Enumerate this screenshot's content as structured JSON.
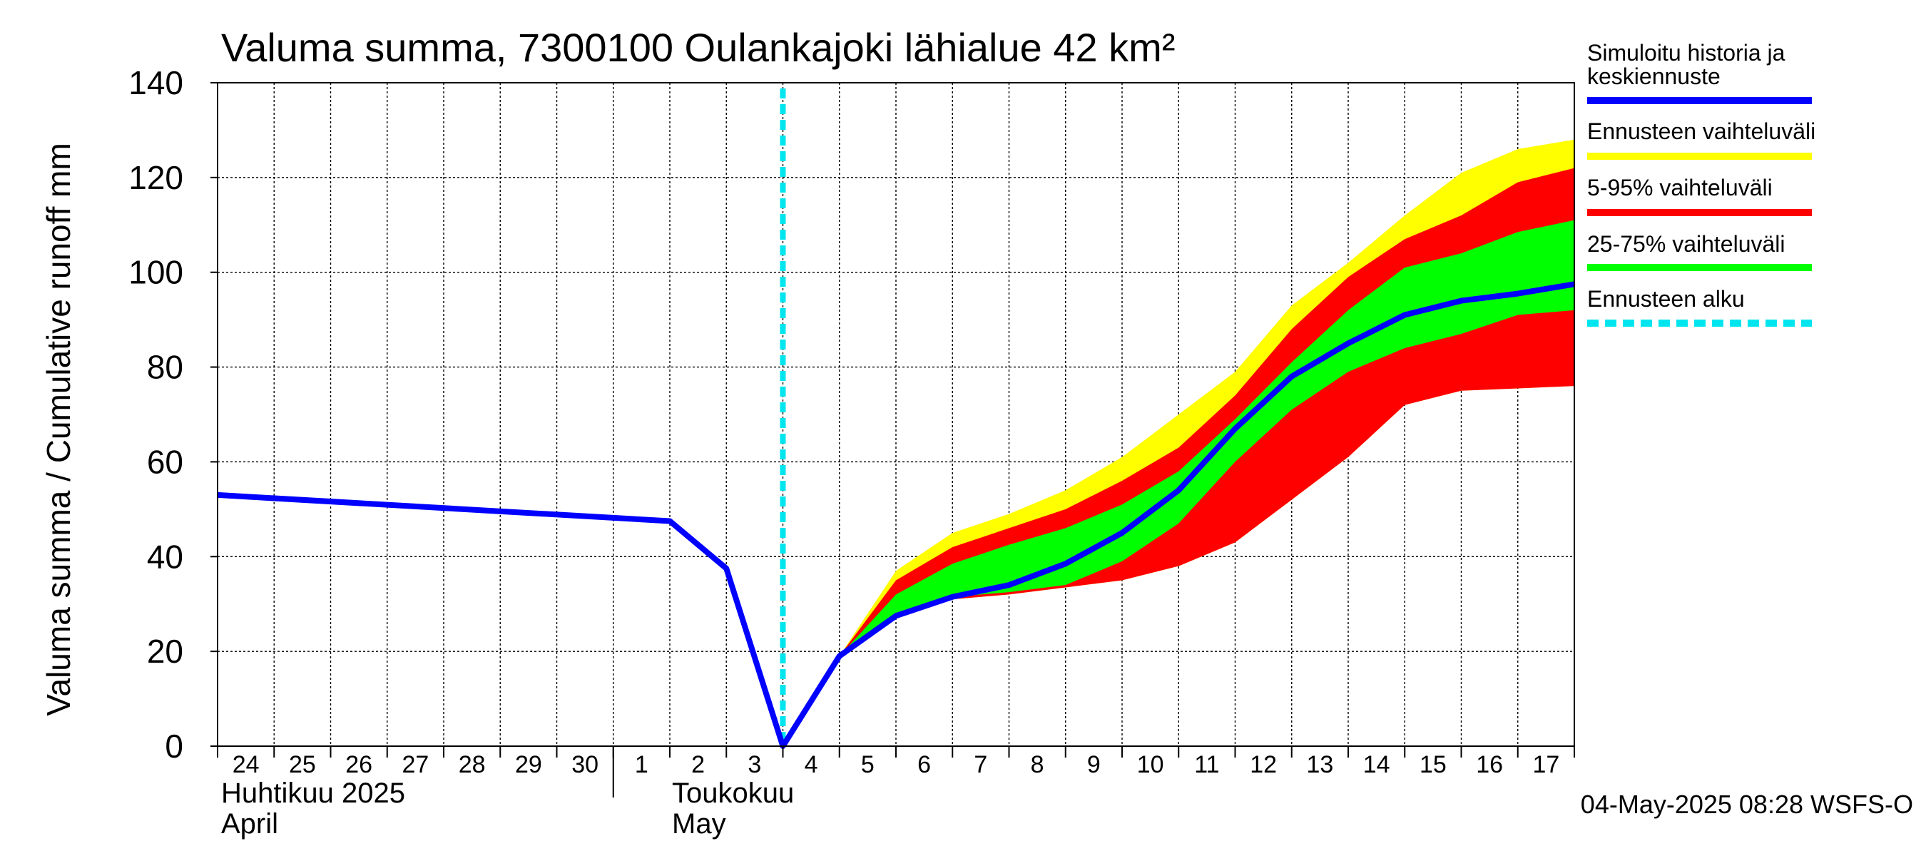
{
  "chart_data": {
    "type": "area",
    "title": "Valuma summa, 7300100 Oulankajoki lähialue 42 km²",
    "ylabel": "Valuma summa / Cumulative runoff    mm",
    "ylim": [
      0,
      140
    ],
    "yticks": [
      0,
      20,
      40,
      60,
      80,
      100,
      120,
      140
    ],
    "grid": true,
    "x_start_day": 0,
    "x_end_day": 24,
    "x_tick_labels": [
      "24",
      "25",
      "26",
      "27",
      "28",
      "29",
      "30",
      "1",
      "2",
      "3",
      "4",
      "5",
      "6",
      "7",
      "8",
      "9",
      "10",
      "11",
      "12",
      "13",
      "14",
      "15",
      "16",
      "17"
    ],
    "month_labels": [
      {
        "line1": "Huhtikuu  2025",
        "line2": "April"
      },
      {
        "line1": "Toukokuu",
        "line2": "May"
      }
    ],
    "forecast_start_day": 10,
    "series": [
      {
        "name": "Simuloitu historia ja keskiennuste",
        "color": "#0000ff",
        "x": [
          0,
          8,
          9,
          10,
          11,
          12,
          13,
          14,
          15,
          16,
          17,
          18,
          19,
          20,
          21,
          22,
          23,
          24
        ],
        "values": [
          53,
          47.5,
          37.5,
          0,
          19,
          27.5,
          31.5,
          34,
          38.5,
          45,
          54,
          67,
          78,
          85,
          91,
          94,
          95.5,
          97.5
        ]
      },
      {
        "name": "Ennusteen vaihteluväli",
        "color": "#ffff00",
        "x": [
          11,
          12,
          13,
          14,
          15,
          16,
          17,
          18,
          19,
          20,
          21,
          22,
          23,
          24
        ],
        "upper": [
          19,
          37,
          45,
          49,
          54,
          61,
          70,
          79,
          93,
          102,
          112,
          121,
          126,
          128
        ],
        "lower": [
          19,
          27.5,
          31,
          32,
          33.5,
          35,
          38,
          43,
          52,
          61,
          72,
          75,
          75.5,
          76
        ]
      },
      {
        "name": "5-95% vaihteluväli",
        "color": "#ff0000",
        "x": [
          11,
          12,
          13,
          14,
          15,
          16,
          17,
          18,
          19,
          20,
          21,
          22,
          23,
          24
        ],
        "upper": [
          19,
          35,
          42,
          46,
          50,
          56,
          63,
          74,
          88,
          99,
          107,
          112,
          119,
          122
        ],
        "lower": [
          19,
          27.5,
          31,
          32,
          33.5,
          35,
          38,
          43,
          52,
          61,
          72,
          75,
          75.5,
          76
        ]
      },
      {
        "name": "25-75% vaihteluväli",
        "color": "#00ff00",
        "x": [
          11,
          12,
          13,
          14,
          15,
          16,
          17,
          18,
          19,
          20,
          21,
          22,
          23,
          24
        ],
        "upper": [
          19,
          32,
          38.5,
          42.5,
          46,
          51,
          58,
          69,
          81,
          92,
          101,
          104,
          108.5,
          111
        ],
        "lower": [
          19,
          27.5,
          31.5,
          32.5,
          34,
          39,
          47,
          60,
          71,
          79,
          84,
          87,
          91,
          92
        ]
      },
      {
        "name": "Ennusteen alku",
        "color": "#00e5ee",
        "dashed": true
      }
    ],
    "footer": "04-May-2025 08:28 WSFS-O"
  }
}
